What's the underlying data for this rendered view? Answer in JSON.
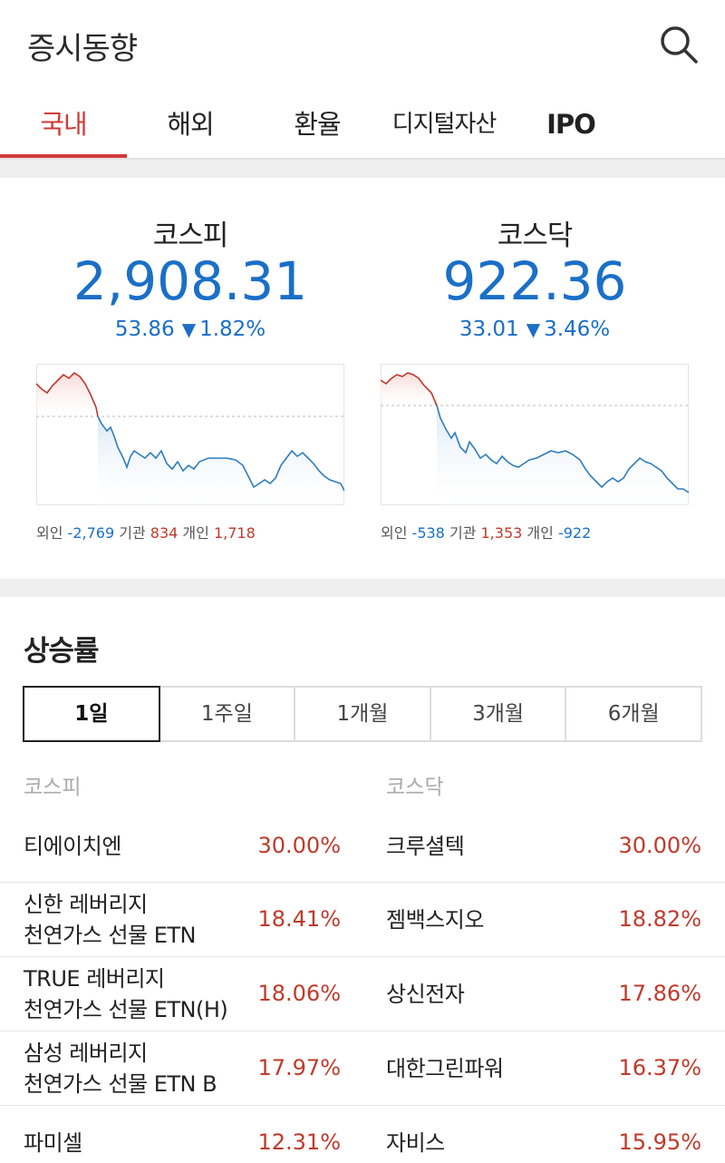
{
  "header": {
    "title": "증시동향"
  },
  "tabs": [
    {
      "label": "국내"
    },
    {
      "label": "해외"
    },
    {
      "label": "환율"
    },
    {
      "label": "디지털자산"
    },
    {
      "label": "IPO"
    }
  ],
  "indices": [
    {
      "name": "코스피",
      "value": "2,908.31",
      "change": "53.86",
      "direction": "▼",
      "change_pct": "1.82%",
      "flows": {
        "foreign_label": "외인",
        "foreign": "-2,769",
        "inst_label": "기관",
        "inst": "834",
        "retail_label": "개인",
        "retail": "1,718"
      }
    },
    {
      "name": "코스닥",
      "value": "922.36",
      "change": "33.01",
      "direction": "▼",
      "change_pct": "3.46%",
      "flows": {
        "foreign_label": "외인",
        "foreign": "-538",
        "inst_label": "기관",
        "inst": "1,353",
        "retail_label": "개인",
        "retail": "-922"
      }
    }
  ],
  "gainers": {
    "title": "상승률",
    "periods": [
      "1일",
      "1주일",
      "1개월",
      "3개월",
      "6개월"
    ],
    "selected_period": "1일",
    "kospi_label": "코스피",
    "kosdaq_label": "코스닥",
    "rows": [
      {
        "kospi_name": [
          "티에이치엔"
        ],
        "kospi_rate": "30.00%",
        "kosdaq_name": "크루셜텍",
        "kosdaq_rate": "30.00%"
      },
      {
        "kospi_name": [
          "신한 레버리지",
          "천연가스 선물 ETN"
        ],
        "kospi_rate": "18.41%",
        "kosdaq_name": "젬백스지오",
        "kosdaq_rate": "18.82%"
      },
      {
        "kospi_name": [
          "TRUE 레버리지",
          "천연가스 선물 ETN(H)"
        ],
        "kospi_rate": "18.06%",
        "kosdaq_name": "상신전자",
        "kosdaq_rate": "17.86%"
      },
      {
        "kospi_name": [
          "삼성 레버리지",
          "천연가스 선물 ETN B"
        ],
        "kospi_rate": "17.97%",
        "kosdaq_name": "대한그린파워",
        "kosdaq_rate": "16.37%"
      },
      {
        "kospi_name": [
          "파미셀"
        ],
        "kospi_rate": "12.31%",
        "kosdaq_name": "자비스",
        "kosdaq_rate": "15.95%"
      }
    ]
  },
  "colors": {
    "accent": "#d23a3a",
    "down": "#1a6fc8",
    "up": "#c0392b"
  }
}
